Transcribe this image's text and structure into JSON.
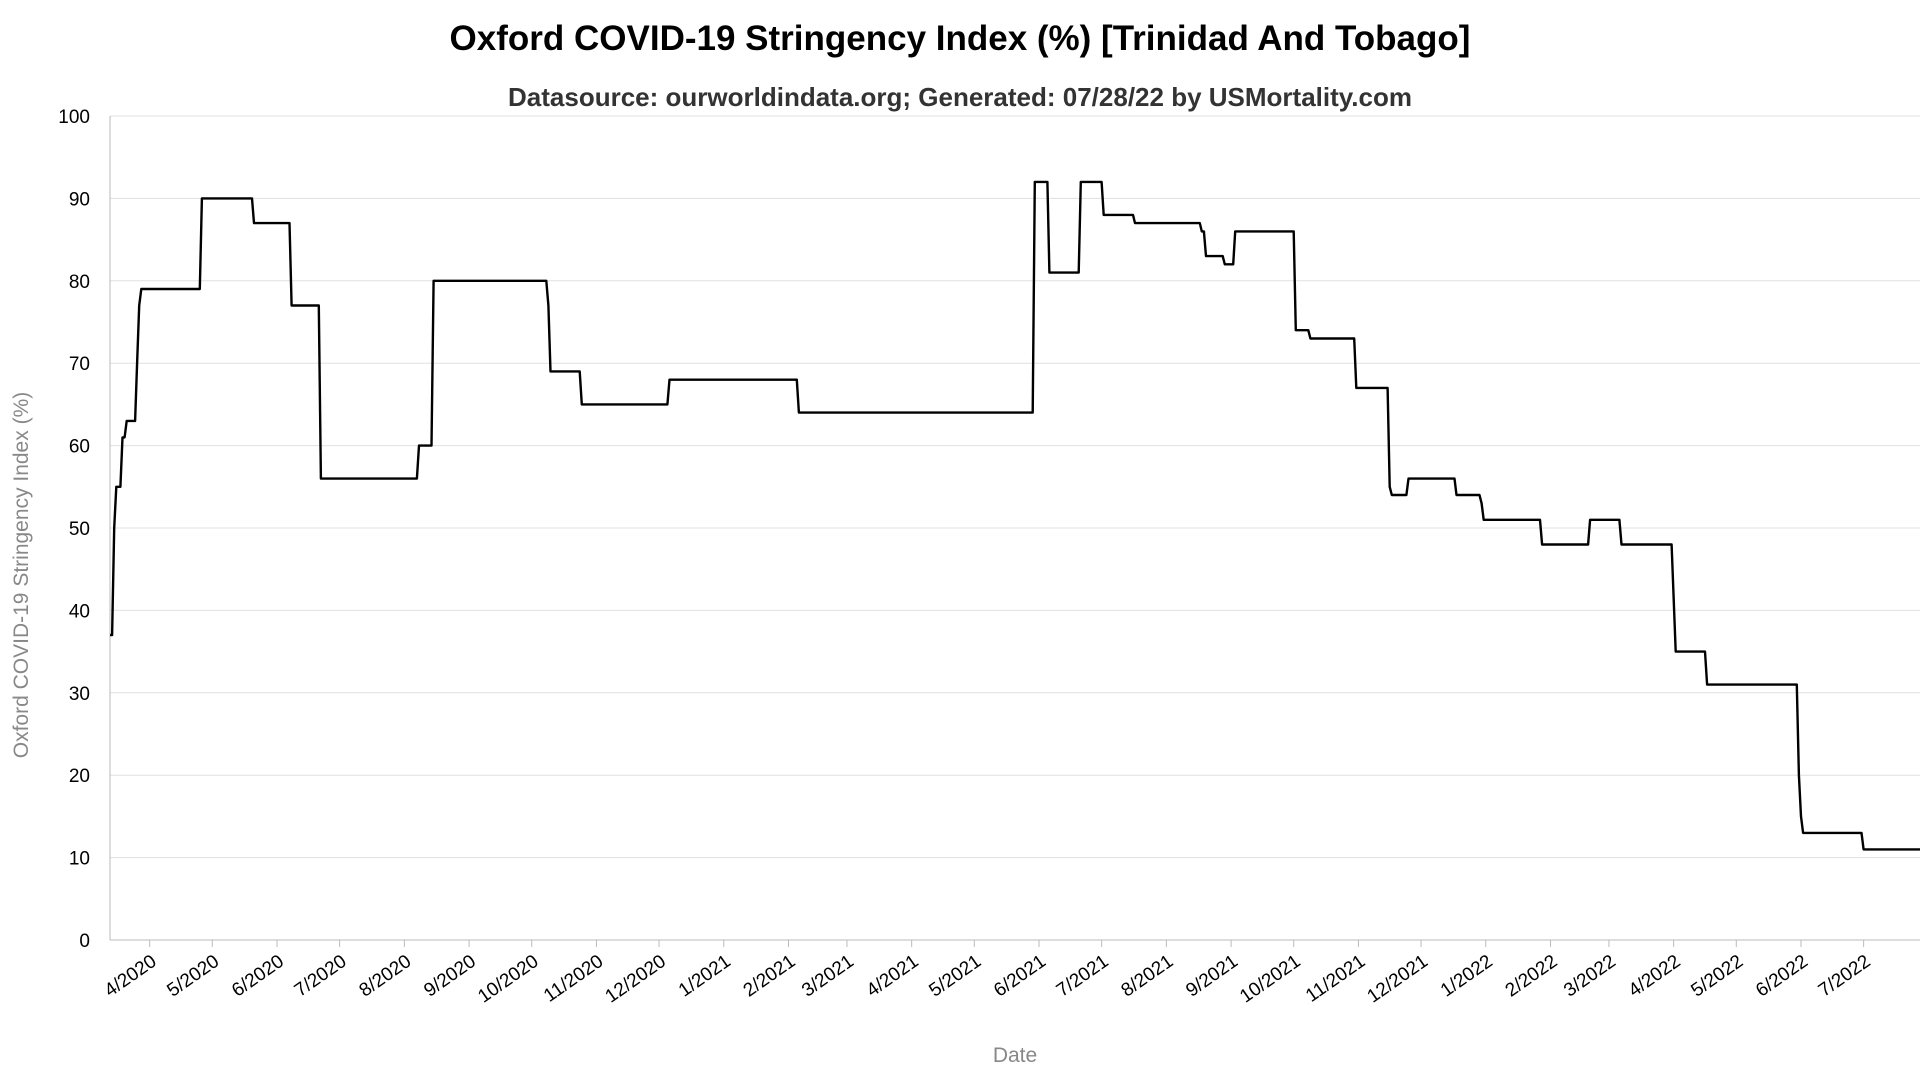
{
  "chart_data": {
    "type": "line",
    "title": "Oxford COVID-19 Stringency Index (%) [Trinidad And Tobago]",
    "subtitle": "Datasource: ourworldindata.org; Generated: 07/28/22 by USMortality.com",
    "xlabel": "Date",
    "ylabel": "Oxford COVID-19 Stringency Index (%)",
    "ylim": [
      0,
      100
    ],
    "yticks": [
      0,
      10,
      20,
      30,
      40,
      50,
      60,
      70,
      80,
      90,
      100
    ],
    "xlim": [
      "2020-03-13",
      "2022-07-28"
    ],
    "xticks": [
      {
        "date": "2020-04-01",
        "label": "4/2020"
      },
      {
        "date": "2020-05-01",
        "label": "5/2020"
      },
      {
        "date": "2020-06-01",
        "label": "6/2020"
      },
      {
        "date": "2020-07-01",
        "label": "7/2020"
      },
      {
        "date": "2020-08-01",
        "label": "8/2020"
      },
      {
        "date": "2020-09-01",
        "label": "9/2020"
      },
      {
        "date": "2020-10-01",
        "label": "10/2020"
      },
      {
        "date": "2020-11-01",
        "label": "11/2020"
      },
      {
        "date": "2020-12-01",
        "label": "12/2020"
      },
      {
        "date": "2021-01-01",
        "label": "1/2021"
      },
      {
        "date": "2021-02-01",
        "label": "2/2021"
      },
      {
        "date": "2021-03-01",
        "label": "3/2021"
      },
      {
        "date": "2021-04-01",
        "label": "4/2021"
      },
      {
        "date": "2021-05-01",
        "label": "5/2021"
      },
      {
        "date": "2021-06-01",
        "label": "6/2021"
      },
      {
        "date": "2021-07-01",
        "label": "7/2021"
      },
      {
        "date": "2021-08-01",
        "label": "8/2021"
      },
      {
        "date": "2021-09-01",
        "label": "9/2021"
      },
      {
        "date": "2021-10-01",
        "label": "10/2021"
      },
      {
        "date": "2021-11-01",
        "label": "11/2021"
      },
      {
        "date": "2021-12-01",
        "label": "12/2021"
      },
      {
        "date": "2022-01-01",
        "label": "1/2022"
      },
      {
        "date": "2022-02-01",
        "label": "2/2022"
      },
      {
        "date": "2022-03-01",
        "label": "3/2022"
      },
      {
        "date": "2022-04-01",
        "label": "4/2022"
      },
      {
        "date": "2022-05-01",
        "label": "5/2022"
      },
      {
        "date": "2022-06-01",
        "label": "6/2022"
      },
      {
        "date": "2022-07-01",
        "label": "7/2022"
      }
    ],
    "grid": true,
    "line_color": "#000000",
    "series": [
      {
        "name": "",
        "points": [
          [
            "2020-03-13",
            37
          ],
          [
            "2020-03-14",
            37
          ],
          [
            "2020-03-15",
            50
          ],
          [
            "2020-03-16",
            55
          ],
          [
            "2020-03-18",
            55
          ],
          [
            "2020-03-19",
            61
          ],
          [
            "2020-03-20",
            61
          ],
          [
            "2020-03-21",
            63
          ],
          [
            "2020-03-25",
            63
          ],
          [
            "2020-03-26",
            70
          ],
          [
            "2020-03-27",
            77
          ],
          [
            "2020-03-28",
            79
          ],
          [
            "2020-04-25",
            79
          ],
          [
            "2020-04-26",
            90
          ],
          [
            "2020-05-20",
            90
          ],
          [
            "2020-05-21",
            87
          ],
          [
            "2020-06-07",
            87
          ],
          [
            "2020-06-08",
            77
          ],
          [
            "2020-06-21",
            77
          ],
          [
            "2020-06-22",
            56
          ],
          [
            "2020-08-07",
            56
          ],
          [
            "2020-08-08",
            60
          ],
          [
            "2020-08-14",
            60
          ],
          [
            "2020-08-15",
            80
          ],
          [
            "2020-10-08",
            80
          ],
          [
            "2020-10-09",
            77
          ],
          [
            "2020-10-10",
            69
          ],
          [
            "2020-10-24",
            69
          ],
          [
            "2020-10-25",
            65
          ],
          [
            "2020-12-05",
            65
          ],
          [
            "2020-12-06",
            68
          ],
          [
            "2021-02-05",
            68
          ],
          [
            "2021-02-06",
            64
          ],
          [
            "2021-05-29",
            64
          ],
          [
            "2021-05-30",
            92
          ],
          [
            "2021-06-05",
            92
          ],
          [
            "2021-06-06",
            81
          ],
          [
            "2021-06-20",
            81
          ],
          [
            "2021-06-21",
            92
          ],
          [
            "2021-07-01",
            92
          ],
          [
            "2021-07-02",
            88
          ],
          [
            "2021-07-16",
            88
          ],
          [
            "2021-07-17",
            87
          ],
          [
            "2021-08-17",
            87
          ],
          [
            "2021-08-18",
            86
          ],
          [
            "2021-08-19",
            86
          ],
          [
            "2021-08-20",
            83
          ],
          [
            "2021-08-28",
            83
          ],
          [
            "2021-08-29",
            82
          ],
          [
            "2021-09-02",
            82
          ],
          [
            "2021-09-03",
            86
          ],
          [
            "2021-10-01",
            86
          ],
          [
            "2021-10-02",
            74
          ],
          [
            "2021-10-08",
            74
          ],
          [
            "2021-10-09",
            73
          ],
          [
            "2021-10-30",
            73
          ],
          [
            "2021-10-31",
            67
          ],
          [
            "2021-11-15",
            67
          ],
          [
            "2021-11-16",
            55
          ],
          [
            "2021-11-17",
            54
          ],
          [
            "2021-11-24",
            54
          ],
          [
            "2021-11-25",
            56
          ],
          [
            "2021-12-17",
            56
          ],
          [
            "2021-12-18",
            54
          ],
          [
            "2021-12-29",
            54
          ],
          [
            "2021-12-30",
            53
          ],
          [
            "2021-12-31",
            51
          ],
          [
            "2022-01-27",
            51
          ],
          [
            "2022-01-28",
            48
          ],
          [
            "2022-02-19",
            48
          ],
          [
            "2022-02-20",
            51
          ],
          [
            "2022-03-06",
            51
          ],
          [
            "2022-03-07",
            48
          ],
          [
            "2022-03-31",
            48
          ],
          [
            "2022-04-02",
            35
          ],
          [
            "2022-04-16",
            35
          ],
          [
            "2022-04-17",
            31
          ],
          [
            "2022-05-30",
            31
          ],
          [
            "2022-05-31",
            20
          ],
          [
            "2022-06-01",
            15
          ],
          [
            "2022-06-02",
            13
          ],
          [
            "2022-06-30",
            13
          ],
          [
            "2022-07-01",
            11
          ],
          [
            "2022-07-28",
            11
          ]
        ]
      }
    ]
  }
}
